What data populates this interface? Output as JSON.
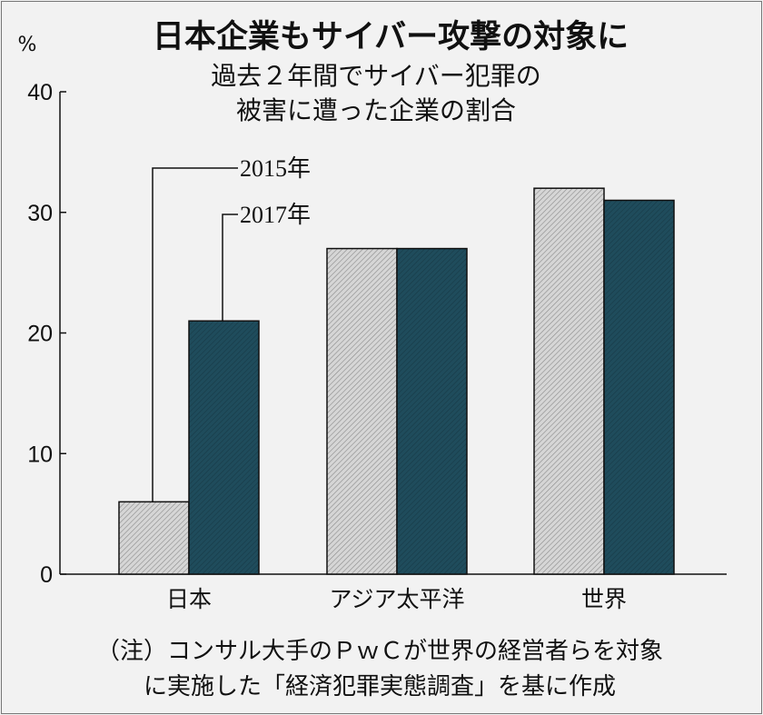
{
  "chart_data": {
    "type": "bar",
    "title": "日本企業もサイバー攻撃の対象に",
    "subtitle_lines": [
      "過去２年間でサイバー犯罪の",
      "被害に遭った企業の割合"
    ],
    "ylabel": "%",
    "ylim": [
      0,
      40
    ],
    "yticks": [
      0,
      10,
      20,
      30,
      40
    ],
    "categories": [
      "日本",
      "アジア太平洋",
      "世界"
    ],
    "series": [
      {
        "name": "2015年",
        "values": [
          6,
          27,
          32
        ],
        "color": "#cfcfcf"
      },
      {
        "name": "2017年",
        "values": [
          21,
          27,
          31
        ],
        "color": "#1f4c5c"
      }
    ],
    "legend": "callout lines to Japan bars",
    "note_lines": [
      "（注）コンサル大手のＰｗＣが世界の経営者らを対象",
      "に実施した「経済犯罪実態調査」を基に作成"
    ]
  }
}
